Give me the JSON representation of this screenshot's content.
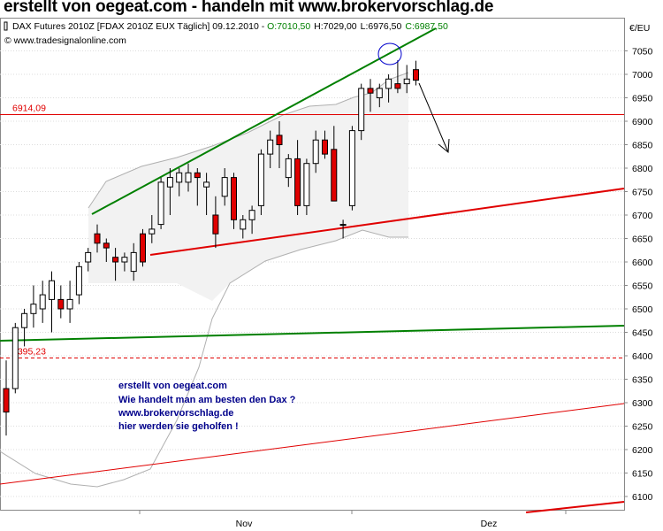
{
  "page": {
    "title": "erstellt von oegeat.com - handeln mit www.brokervorschlag.de"
  },
  "chart_header": {
    "instrument": "DAX Futures 2010Z [FDAX 2010Z EUX  Täglich] 09.12.2010 - ",
    "open": "O:7010,50",
    "high": "H:7029,00",
    "low": "L:6976,50",
    "close": "C:6987,50",
    "copyright": "© www.tradesignalonline.com",
    "currency": "€/EU"
  },
  "colors": {
    "up_candle": "#ffffff",
    "down_candle": "#e00000",
    "green_line": "#008000",
    "red_line": "#e00000",
    "annotation_text": "#00008b",
    "bollinger": "#b0b0b0",
    "open_value": "#008000",
    "close_value": "#008000"
  },
  "annotation_lines": [
    "erstellt von oegeat.com",
    "Wie handelt man am besten den Dax ?",
    "www.brokervorschlag.de",
    "hier werden sie geholfen !"
  ],
  "chart_data": {
    "type": "candlestick",
    "y_axis": {
      "ticks": [
        "7050",
        "7000",
        "6950",
        "6900",
        "6850",
        "6800",
        "6750",
        "6700",
        "6650",
        "6600",
        "6550",
        "6500",
        "6450",
        "6400",
        "6350",
        "6300",
        "6250",
        "6200",
        "6150",
        "6100"
      ],
      "ylim": [
        6085,
        7135
      ]
    },
    "x_axis": {
      "ticks": [
        "Nov",
        "Dez"
      ]
    },
    "horizontal_levels": [
      {
        "label": "6914,09",
        "value": 6914.09,
        "style": "solid",
        "color": "#e00000"
      },
      {
        "label": "6395,23",
        "value": 6395.23,
        "style": "dashed",
        "color": "#e00000"
      }
    ],
    "candles": [
      {
        "o": 6330,
        "h": 6390,
        "l": 6230,
        "c": 6280
      },
      {
        "o": 6330,
        "h": 6470,
        "l": 6320,
        "c": 6460
      },
      {
        "o": 6460,
        "h": 6500,
        "l": 6420,
        "c": 6490
      },
      {
        "o": 6490,
        "h": 6550,
        "l": 6460,
        "c": 6510
      },
      {
        "o": 6500,
        "h": 6560,
        "l": 6470,
        "c": 6530
      },
      {
        "o": 6520,
        "h": 6580,
        "l": 6450,
        "c": 6560
      },
      {
        "o": 6520,
        "h": 6550,
        "l": 6480,
        "c": 6500
      },
      {
        "o": 6500,
        "h": 6560,
        "l": 6470,
        "c": 6520
      },
      {
        "o": 6530,
        "h": 6600,
        "l": 6510,
        "c": 6590
      },
      {
        "o": 6600,
        "h": 6630,
        "l": 6580,
        "c": 6620
      },
      {
        "o": 6660,
        "h": 6680,
        "l": 6620,
        "c": 6640
      },
      {
        "o": 6640,
        "h": 6650,
        "l": 6600,
        "c": 6630
      },
      {
        "o": 6610,
        "h": 6630,
        "l": 6560,
        "c": 6600
      },
      {
        "o": 6600,
        "h": 6620,
        "l": 6580,
        "c": 6610
      },
      {
        "o": 6580,
        "h": 6640,
        "l": 6560,
        "c": 6620
      },
      {
        "o": 6660,
        "h": 6670,
        "l": 6590,
        "c": 6600
      },
      {
        "o": 6660,
        "h": 6700,
        "l": 6640,
        "c": 6670
      },
      {
        "o": 6680,
        "h": 6780,
        "l": 6670,
        "c": 6770
      },
      {
        "o": 6760,
        "h": 6800,
        "l": 6700,
        "c": 6780
      },
      {
        "o": 6770,
        "h": 6800,
        "l": 6740,
        "c": 6790
      },
      {
        "o": 6770,
        "h": 6810,
        "l": 6750,
        "c": 6790
      },
      {
        "o": 6790,
        "h": 6800,
        "l": 6720,
        "c": 6780
      },
      {
        "o": 6760,
        "h": 6790,
        "l": 6700,
        "c": 6770
      },
      {
        "o": 6700,
        "h": 6740,
        "l": 6630,
        "c": 6660
      },
      {
        "o": 6740,
        "h": 6800,
        "l": 6720,
        "c": 6780
      },
      {
        "o": 6780,
        "h": 6790,
        "l": 6670,
        "c": 6690
      },
      {
        "o": 6670,
        "h": 6700,
        "l": 6650,
        "c": 6690
      },
      {
        "o": 6690,
        "h": 6720,
        "l": 6660,
        "c": 6710
      },
      {
        "o": 6720,
        "h": 6840,
        "l": 6700,
        "c": 6830
      },
      {
        "o": 6830,
        "h": 6880,
        "l": 6800,
        "c": 6860
      },
      {
        "o": 6870,
        "h": 6900,
        "l": 6800,
        "c": 6850
      },
      {
        "o": 6780,
        "h": 6830,
        "l": 6760,
        "c": 6820
      },
      {
        "o": 6820,
        "h": 6860,
        "l": 6700,
        "c": 6720
      },
      {
        "o": 6720,
        "h": 6820,
        "l": 6700,
        "c": 6810
      },
      {
        "o": 6810,
        "h": 6880,
        "l": 6790,
        "c": 6860
      },
      {
        "o": 6860,
        "h": 6880,
        "l": 6820,
        "c": 6830
      },
      {
        "o": 6840,
        "h": 6890,
        "l": 6730,
        "c": 6730
      },
      {
        "o": 6680,
        "h": 6690,
        "l": 6650,
        "c": 6680
      },
      {
        "o": 6720,
        "h": 6890,
        "l": 6710,
        "c": 6880
      },
      {
        "o": 6880,
        "h": 6980,
        "l": 6860,
        "c": 6970
      },
      {
        "o": 6970,
        "h": 6990,
        "l": 6920,
        "c": 6960
      },
      {
        "o": 6950,
        "h": 6980,
        "l": 6930,
        "c": 6970
      },
      {
        "o": 6970,
        "h": 7000,
        "l": 6940,
        "c": 6990
      },
      {
        "o": 6980,
        "h": 7030,
        "l": 6960,
        "c": 6970
      },
      {
        "o": 6980,
        "h": 7020,
        "l": 6960,
        "c": 6990
      },
      {
        "o": 7010,
        "h": 7029,
        "l": 6976.5,
        "c": 6987.5
      }
    ]
  }
}
